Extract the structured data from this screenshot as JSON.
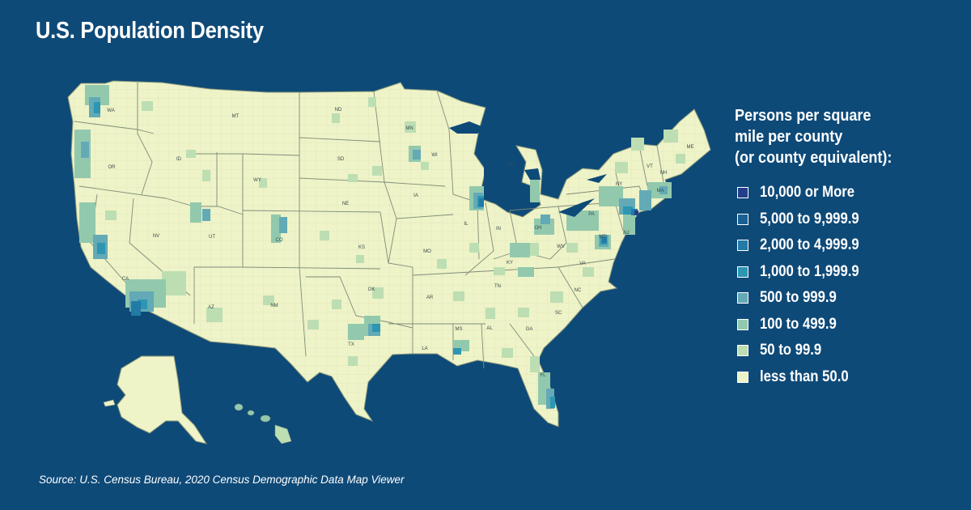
{
  "title": "U.S. Population Density",
  "legend": {
    "heading": "Persons per square\nmile per county\n(or county equivalent):",
    "items": [
      {
        "label": "10,000 or More",
        "color": "#263e8a"
      },
      {
        "label": "5,000 to 9,999.9",
        "color": "#1b5f93"
      },
      {
        "label": "2,000 to 4,999.9",
        "color": "#227aa6"
      },
      {
        "label": "1,000 to 1,999.9",
        "color": "#2d96b2"
      },
      {
        "label": "500 to 999.9",
        "color": "#63aab6"
      },
      {
        "label": "100 to 499.9",
        "color": "#92c9ad"
      },
      {
        "label": "50 to 99.9",
        "color": "#bcdeb2"
      },
      {
        "label": "less than 50.0",
        "color": "#eef3c8"
      }
    ]
  },
  "state_labels": [
    "WA",
    "MT",
    "ND",
    "MN",
    "OR",
    "ID",
    "SD",
    "WI",
    "MI",
    "ME",
    "VT",
    "NH",
    "WY",
    "NY",
    "MA",
    "IA",
    "CT",
    "NE",
    "PA",
    "NV",
    "UT",
    "IL",
    "IN",
    "OH",
    "NJ",
    "MD",
    "CO",
    "KS",
    "MO",
    "WV",
    "KY",
    "VA",
    "CA",
    "OK",
    "TN",
    "NC",
    "AZ",
    "NM",
    "AR",
    "SC",
    "MS",
    "AL",
    "GA",
    "TX",
    "LA",
    "FL"
  ],
  "source": "Source: U.S. Census Bureau, 2020 Census Demographic Data Map Viewer"
}
